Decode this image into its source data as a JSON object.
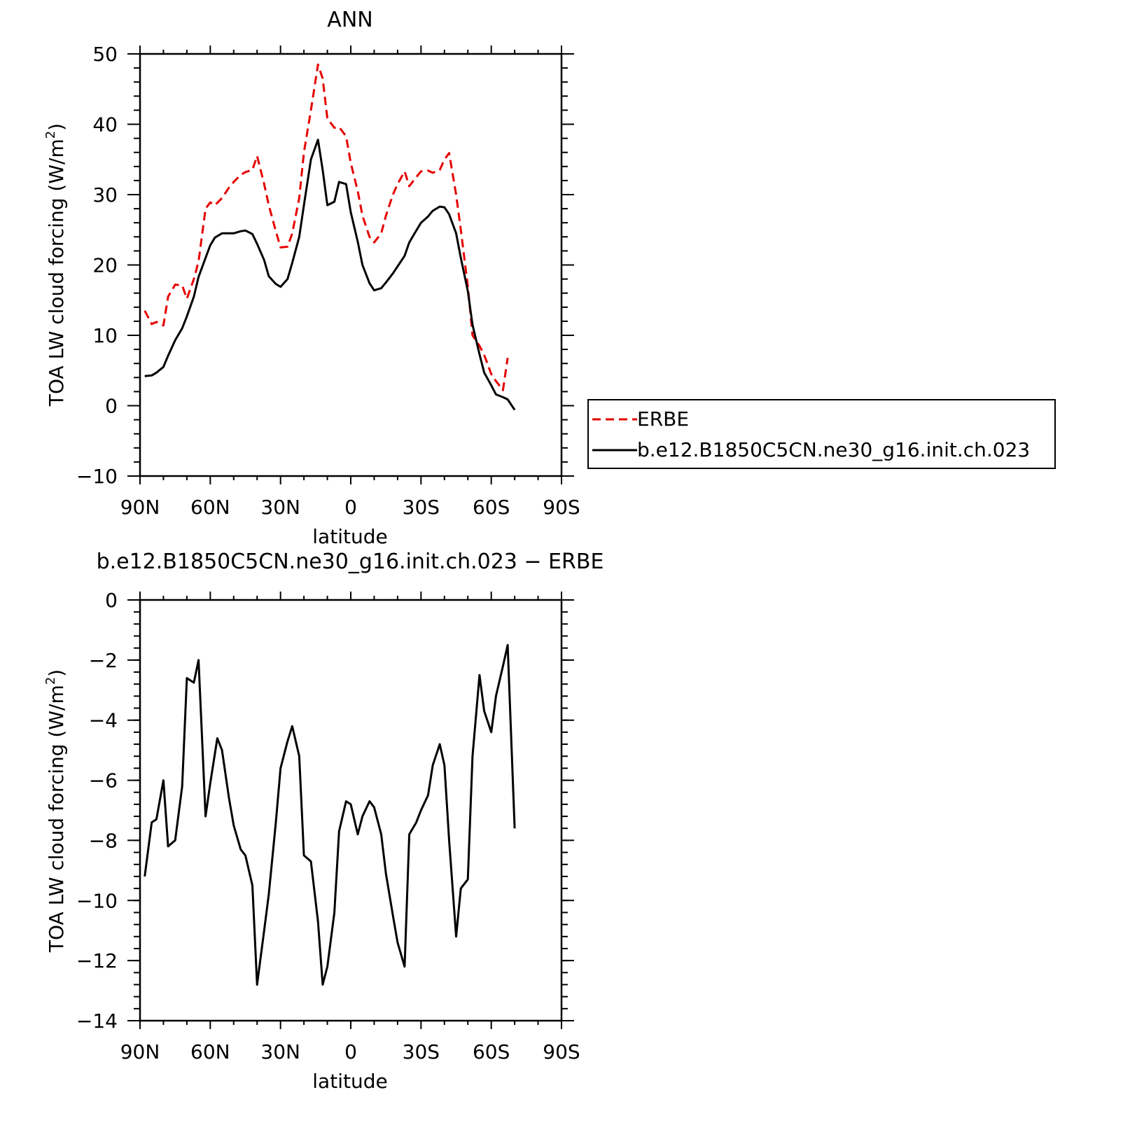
{
  "chart_data": [
    {
      "type": "line",
      "title": "ANN",
      "xlabel": "latitude",
      "ylabel": "TOA LW cloud forcing (W/m",
      "ylabel_sup": "2",
      "ylabel_close": ")",
      "xlim": [
        90,
        -90
      ],
      "ylim": [
        -10,
        50
      ],
      "xticks": [
        90,
        60,
        30,
        0,
        -30,
        -60,
        -90
      ],
      "xtick_labels": [
        "90N",
        "60N",
        "30N",
        "0",
        "30S",
        "60S",
        "90S"
      ],
      "yticks": [
        -10,
        0,
        10,
        20,
        30,
        40,
        50
      ],
      "ytick_labels": [
        "−10",
        "0",
        "10",
        "20",
        "30",
        "40",
        "50"
      ],
      "legend": "right",
      "series": [
        {
          "name": "ERBE",
          "color": "#e60000",
          "dash": true,
          "points": [
            [
              88,
              13.5
            ],
            [
              85,
              11.6
            ],
            [
              83,
              11.9
            ],
            [
              80,
              11.4
            ],
            [
              78,
              15.5
            ],
            [
              75,
              17.2
            ],
            [
              72,
              17.1
            ],
            [
              70,
              15.2
            ],
            [
              67,
              18
            ],
            [
              65,
              20.5
            ],
            [
              62,
              28
            ],
            [
              60,
              28.9
            ],
            [
              58,
              28.5
            ],
            [
              55,
              29.5
            ],
            [
              52,
              31
            ],
            [
              50,
              31.8
            ],
            [
              47,
              32.8
            ],
            [
              45,
              33.2
            ],
            [
              42,
              33.5
            ],
            [
              40,
              35.5
            ],
            [
              37,
              31.5
            ],
            [
              35,
              28.5
            ],
            [
              32,
              24.8
            ],
            [
              30,
              22.5
            ],
            [
              27,
              22.6
            ],
            [
              25,
              24.5
            ],
            [
              22,
              29.5
            ],
            [
              20,
              36
            ],
            [
              17,
              42
            ],
            [
              14,
              48.5
            ],
            [
              12,
              46.5
            ],
            [
              10,
              40.8
            ],
            [
              7,
              39.5
            ],
            [
              5,
              39.6
            ],
            [
              2,
              38.3
            ],
            [
              0,
              34.5
            ],
            [
              -3,
              30.5
            ],
            [
              -5,
              27
            ],
            [
              -8,
              24
            ],
            [
              -10,
              23.2
            ],
            [
              -13,
              24.5
            ],
            [
              -15,
              27
            ],
            [
              -18,
              30
            ],
            [
              -20,
              31.5
            ],
            [
              -23,
              33.3
            ],
            [
              -25,
              31.2
            ],
            [
              -28,
              32.5
            ],
            [
              -30,
              33.3
            ],
            [
              -33,
              33.4
            ],
            [
              -35,
              33.1
            ],
            [
              -38,
              33.5
            ],
            [
              -40,
              35
            ],
            [
              -42,
              35.9
            ],
            [
              -45,
              30
            ],
            [
              -47,
              25
            ],
            [
              -50,
              17
            ],
            [
              -52,
              10
            ],
            [
              -55,
              8.5
            ],
            [
              -57,
              7.2
            ],
            [
              -60,
              4.5
            ],
            [
              -62,
              3.5
            ],
            [
              -65,
              2.2
            ],
            [
              -67,
              6.8
            ]
          ]
        },
        {
          "name": "b.e12.B1850C5CN.ne30_g16.init.ch.023",
          "color": "#000000",
          "dash": false,
          "points": [
            [
              88,
              4.2
            ],
            [
              85,
              4.3
            ],
            [
              83,
              4.7
            ],
            [
              80,
              5.5
            ],
            [
              78,
              7.1
            ],
            [
              75,
              9.3
            ],
            [
              72,
              11
            ],
            [
              70,
              12.7
            ],
            [
              67,
              15.5
            ],
            [
              65,
              18.3
            ],
            [
              62,
              21
            ],
            [
              60,
              22.8
            ],
            [
              58,
              23.9
            ],
            [
              55,
              24.5
            ],
            [
              52,
              24.5
            ],
            [
              50,
              24.5
            ],
            [
              47,
              24.8
            ],
            [
              45,
              24.9
            ],
            [
              42,
              24.4
            ],
            [
              40,
              23
            ],
            [
              37,
              20.7
            ],
            [
              35,
              18.4
            ],
            [
              32,
              17.3
            ],
            [
              30,
              16.9
            ],
            [
              27,
              18
            ],
            [
              25,
              20.3
            ],
            [
              22,
              24
            ],
            [
              20,
              28.5
            ],
            [
              17,
              35
            ],
            [
              14,
              37.8
            ],
            [
              12,
              33.5
            ],
            [
              10,
              28.5
            ],
            [
              7,
              29
            ],
            [
              5,
              31.8
            ],
            [
              2,
              31.5
            ],
            [
              0,
              27.5
            ],
            [
              -3,
              23.3
            ],
            [
              -5,
              20
            ],
            [
              -8,
              17.4
            ],
            [
              -10,
              16.4
            ],
            [
              -13,
              16.7
            ],
            [
              -15,
              17.5
            ],
            [
              -18,
              18.8
            ],
            [
              -20,
              19.8
            ],
            [
              -23,
              21.3
            ],
            [
              -25,
              23.2
            ],
            [
              -28,
              24.9
            ],
            [
              -30,
              26
            ],
            [
              -33,
              26.9
            ],
            [
              -35,
              27.7
            ],
            [
              -38,
              28.3
            ],
            [
              -40,
              28.2
            ],
            [
              -42,
              27.2
            ],
            [
              -45,
              24.5
            ],
            [
              -47,
              21
            ],
            [
              -50,
              16.3
            ],
            [
              -52,
              11.5
            ],
            [
              -55,
              7.3
            ],
            [
              -57,
              4.7
            ],
            [
              -60,
              2.9
            ],
            [
              -62,
              1.6
            ],
            [
              -65,
              1.2
            ],
            [
              -67,
              0.9
            ],
            [
              -70,
              -0.6
            ]
          ]
        }
      ]
    },
    {
      "type": "line",
      "title": "b.e12.B1850C5CN.ne30_g16.init.ch.023 − ERBE",
      "xlabel": "latitude",
      "ylabel": "TOA LW cloud forcing (W/m",
      "ylabel_sup": "2",
      "ylabel_close": ")",
      "xlim": [
        90,
        -90
      ],
      "ylim": [
        -14,
        0
      ],
      "xticks": [
        90,
        60,
        30,
        0,
        -30,
        -60,
        -90
      ],
      "xtick_labels": [
        "90N",
        "60N",
        "30N",
        "0",
        "30S",
        "60S",
        "90S"
      ],
      "yticks": [
        -14,
        -12,
        -10,
        -8,
        -6,
        -4,
        -2,
        0
      ],
      "ytick_labels": [
        "−14",
        "−12",
        "−10",
        "−8",
        "−6",
        "−4",
        "−2",
        "0"
      ],
      "series": [
        {
          "color": "#000000",
          "dash": false,
          "points": [
            [
              88,
              -9.2
            ],
            [
              85,
              -7.4
            ],
            [
              83,
              -7.3
            ],
            [
              80,
              -6
            ],
            [
              78,
              -8.2
            ],
            [
              75,
              -8
            ],
            [
              72,
              -6.2
            ],
            [
              70,
              -2.6
            ],
            [
              67,
              -2.75
            ],
            [
              65,
              -2
            ],
            [
              62,
              -7.2
            ],
            [
              60,
              -6.1
            ],
            [
              57,
              -4.6
            ],
            [
              55,
              -5
            ],
            [
              52,
              -6.6
            ],
            [
              50,
              -7.5
            ],
            [
              47,
              -8.3
            ],
            [
              45,
              -8.5
            ],
            [
              42,
              -9.5
            ],
            [
              40,
              -12.8
            ],
            [
              37,
              -11
            ],
            [
              35,
              -9.8
            ],
            [
              32,
              -7.4
            ],
            [
              30,
              -5.6
            ],
            [
              27,
              -4.7
            ],
            [
              25,
              -4.2
            ],
            [
              22,
              -5.2
            ],
            [
              20,
              -8.5
            ],
            [
              17,
              -8.7
            ],
            [
              14,
              -10.7
            ],
            [
              12,
              -12.8
            ],
            [
              10,
              -12.2
            ],
            [
              7,
              -10.4
            ],
            [
              5,
              -7.7
            ],
            [
              2,
              -6.7
            ],
            [
              0,
              -6.8
            ],
            [
              -3,
              -7.8
            ],
            [
              -5,
              -7.2
            ],
            [
              -8,
              -6.7
            ],
            [
              -10,
              -6.9
            ],
            [
              -13,
              -7.8
            ],
            [
              -15,
              -9.1
            ],
            [
              -18,
              -10.5
            ],
            [
              -20,
              -11.4
            ],
            [
              -23,
              -12.2
            ],
            [
              -25,
              -7.8
            ],
            [
              -28,
              -7.4
            ],
            [
              -30,
              -7
            ],
            [
              -33,
              -6.5
            ],
            [
              -35,
              -5.5
            ],
            [
              -38,
              -4.8
            ],
            [
              -40,
              -5.5
            ],
            [
              -42,
              -8
            ],
            [
              -45,
              -11.2
            ],
            [
              -47,
              -9.6
            ],
            [
              -50,
              -9.3
            ],
            [
              -52,
              -5.2
            ],
            [
              -55,
              -2.5
            ],
            [
              -57,
              -3.7
            ],
            [
              -60,
              -4.4
            ],
            [
              -62,
              -3.2
            ],
            [
              -65,
              -2.2
            ],
            [
              -67,
              -1.5
            ],
            [
              -70,
              -7.6
            ]
          ]
        }
      ]
    }
  ]
}
